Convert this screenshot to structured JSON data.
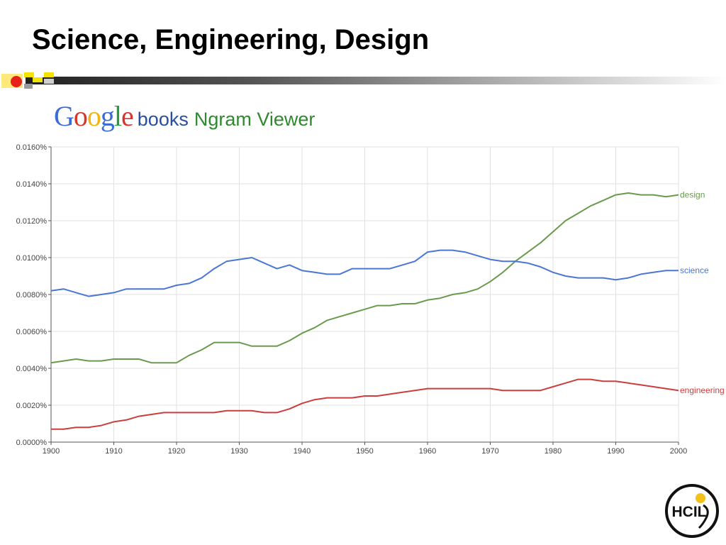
{
  "slide": {
    "title": "Science, Engineering, Design"
  },
  "header": {
    "logo_letters": [
      "G",
      "o",
      "o",
      "g",
      "l",
      "e"
    ],
    "logo_colors": [
      "#3b6bd6",
      "#d6362b",
      "#f2b50f",
      "#3b6bd6",
      "#2a9a3a",
      "#d6362b"
    ],
    "books_label": "books",
    "viewer_label": "Ngram Viewer"
  },
  "footer_logo": {
    "text": "HCIL"
  },
  "chart_data": {
    "type": "line",
    "title": "",
    "xlabel": "",
    "ylabel": "",
    "xlim": [
      1900,
      2000
    ],
    "ylim": [
      0,
      0.016
    ],
    "grid": true,
    "x_ticks": [
      "1900",
      "1910",
      "1920",
      "1930",
      "1940",
      "1950",
      "1960",
      "1970",
      "1980",
      "1990",
      "2000"
    ],
    "y_ticks": [
      "0.0000%",
      "0.0020%",
      "0.0040%",
      "0.0060%",
      "0.0080%",
      "0.0100%",
      "0.0120%",
      "0.0140%",
      "0.0160%"
    ],
    "legend_placement": "line-end labels",
    "x": [
      1900,
      1902,
      1904,
      1906,
      1908,
      1910,
      1912,
      1914,
      1916,
      1918,
      1920,
      1922,
      1924,
      1926,
      1928,
      1930,
      1932,
      1934,
      1936,
      1938,
      1940,
      1942,
      1944,
      1946,
      1948,
      1950,
      1952,
      1954,
      1956,
      1958,
      1960,
      1962,
      1964,
      1966,
      1968,
      1970,
      1972,
      1974,
      1976,
      1978,
      1980,
      1982,
      1984,
      1986,
      1988,
      1990,
      1992,
      1994,
      1996,
      1998,
      2000
    ],
    "series": [
      {
        "name": "design",
        "color": "#6a9a4d",
        "values": [
          0.0043,
          0.0044,
          0.0045,
          0.0044,
          0.0044,
          0.0045,
          0.0045,
          0.0045,
          0.0043,
          0.0043,
          0.0043,
          0.0047,
          0.005,
          0.0054,
          0.0054,
          0.0054,
          0.0052,
          0.0052,
          0.0052,
          0.0055,
          0.0059,
          0.0062,
          0.0066,
          0.0068,
          0.007,
          0.0072,
          0.0074,
          0.0074,
          0.0075,
          0.0075,
          0.0077,
          0.0078,
          0.008,
          0.0081,
          0.0083,
          0.0087,
          0.0092,
          0.0098,
          0.0103,
          0.0108,
          0.0114,
          0.012,
          0.0124,
          0.0128,
          0.0131,
          0.0134,
          0.0135,
          0.0134,
          0.0134,
          0.0133,
          0.0134
        ]
      },
      {
        "name": "science",
        "color": "#4a76d4",
        "values": [
          0.0082,
          0.0083,
          0.0081,
          0.0079,
          0.008,
          0.0081,
          0.0083,
          0.0083,
          0.0083,
          0.0083,
          0.0085,
          0.0086,
          0.0089,
          0.0094,
          0.0098,
          0.0099,
          0.01,
          0.0097,
          0.0094,
          0.0096,
          0.0093,
          0.0092,
          0.0091,
          0.0091,
          0.0094,
          0.0094,
          0.0094,
          0.0094,
          0.0096,
          0.0098,
          0.0103,
          0.0104,
          0.0104,
          0.0103,
          0.0101,
          0.0099,
          0.0098,
          0.0098,
          0.0097,
          0.0095,
          0.0092,
          0.009,
          0.0089,
          0.0089,
          0.0089,
          0.0088,
          0.0089,
          0.0091,
          0.0092,
          0.0093,
          0.0093
        ]
      },
      {
        "name": "engineering",
        "color": "#cc3d3d",
        "values": [
          0.0007,
          0.0007,
          0.0008,
          0.0008,
          0.0009,
          0.0011,
          0.0012,
          0.0014,
          0.0015,
          0.0016,
          0.0016,
          0.0016,
          0.0016,
          0.0016,
          0.0017,
          0.0017,
          0.0017,
          0.0016,
          0.0016,
          0.0018,
          0.0021,
          0.0023,
          0.0024,
          0.0024,
          0.0024,
          0.0025,
          0.0025,
          0.0026,
          0.0027,
          0.0028,
          0.0029,
          0.0029,
          0.0029,
          0.0029,
          0.0029,
          0.0029,
          0.0028,
          0.0028,
          0.0028,
          0.0028,
          0.003,
          0.0032,
          0.0034,
          0.0034,
          0.0033,
          0.0033,
          0.0032,
          0.0031,
          0.003,
          0.0029,
          0.0028
        ]
      }
    ]
  }
}
